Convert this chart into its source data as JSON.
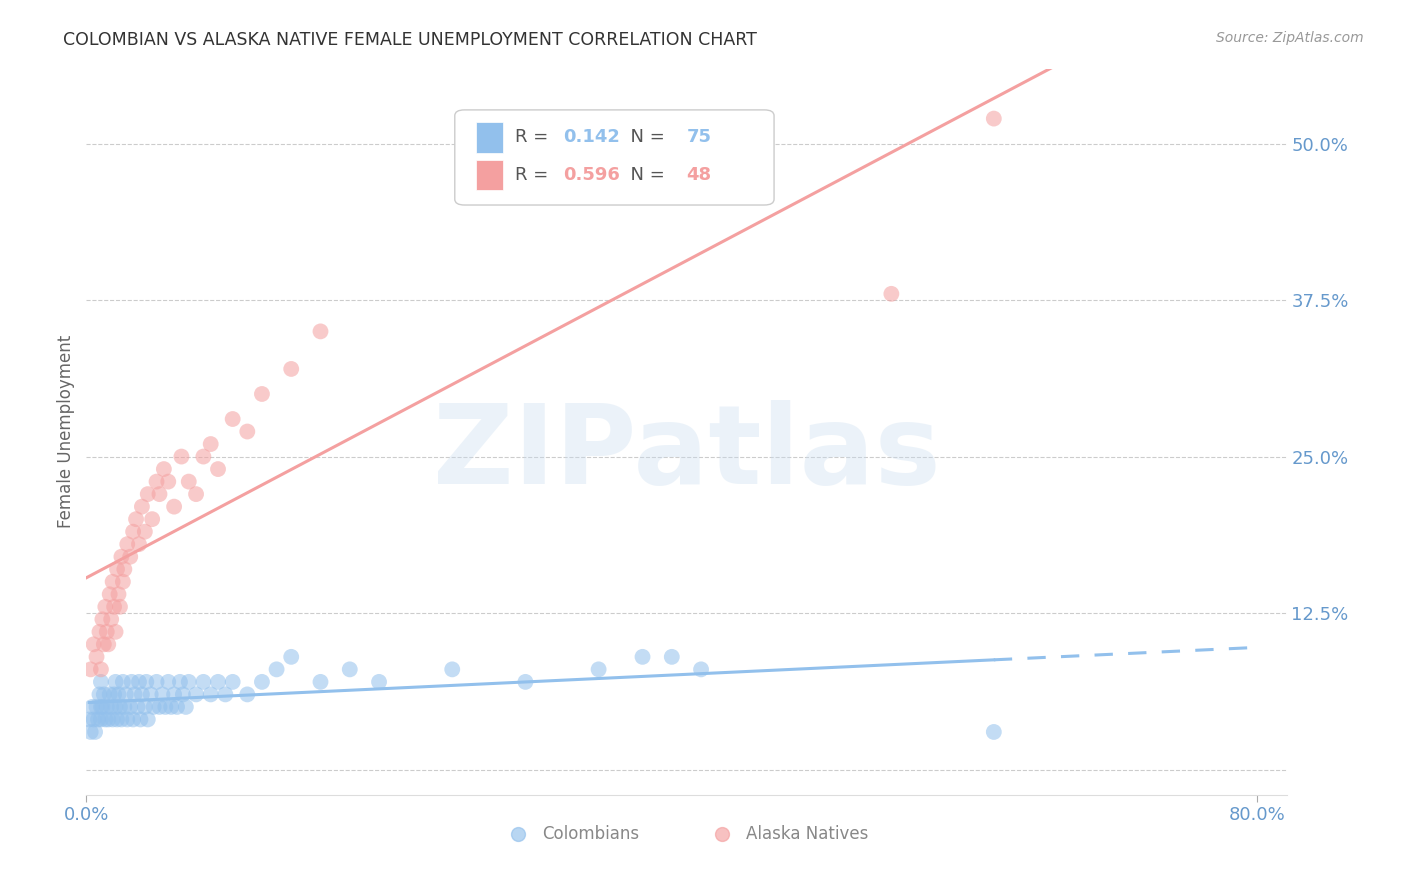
{
  "title": "COLOMBIAN VS ALASKA NATIVE FEMALE UNEMPLOYMENT CORRELATION CHART",
  "source": "Source: ZipAtlas.com",
  "ylabel": "Female Unemployment",
  "watermark": "ZIPatlas",
  "xlim": [
    0.0,
    0.82
  ],
  "ylim": [
    -0.02,
    0.56
  ],
  "yticks": [
    0.0,
    0.125,
    0.25,
    0.375,
    0.5
  ],
  "ytick_labels": [
    "",
    "12.5%",
    "25.0%",
    "37.5%",
    "50.0%"
  ],
  "blue_color": "#92C0EC",
  "pink_color": "#F4A0A0",
  "title_color": "#333333",
  "axis_label_color": "#666666",
  "tick_color": "#6699CC",
  "grid_color": "#CCCCCC",
  "background_color": "#FFFFFF",
  "colombians_R": "0.142",
  "colombians_N": "75",
  "alaska_R": "0.596",
  "alaska_N": "48",
  "colombians_x": [
    0.002,
    0.003,
    0.004,
    0.005,
    0.006,
    0.007,
    0.008,
    0.009,
    0.01,
    0.01,
    0.01,
    0.011,
    0.012,
    0.013,
    0.014,
    0.015,
    0.016,
    0.017,
    0.018,
    0.019,
    0.02,
    0.02,
    0.021,
    0.022,
    0.023,
    0.024,
    0.025,
    0.026,
    0.027,
    0.028,
    0.03,
    0.031,
    0.032,
    0.033,
    0.035,
    0.036,
    0.037,
    0.038,
    0.04,
    0.041,
    0.042,
    0.044,
    0.046,
    0.048,
    0.05,
    0.052,
    0.054,
    0.056,
    0.058,
    0.06,
    0.062,
    0.064,
    0.066,
    0.068,
    0.07,
    0.075,
    0.08,
    0.085,
    0.09,
    0.095,
    0.1,
    0.11,
    0.12,
    0.13,
    0.14,
    0.16,
    0.18,
    0.2,
    0.25,
    0.3,
    0.35,
    0.38,
    0.4,
    0.42,
    0.62
  ],
  "colombians_y": [
    0.04,
    0.03,
    0.05,
    0.04,
    0.03,
    0.05,
    0.04,
    0.06,
    0.05,
    0.07,
    0.04,
    0.05,
    0.06,
    0.04,
    0.05,
    0.04,
    0.06,
    0.05,
    0.04,
    0.06,
    0.05,
    0.07,
    0.04,
    0.06,
    0.05,
    0.04,
    0.07,
    0.05,
    0.06,
    0.04,
    0.05,
    0.07,
    0.04,
    0.06,
    0.05,
    0.07,
    0.04,
    0.06,
    0.05,
    0.07,
    0.04,
    0.06,
    0.05,
    0.07,
    0.05,
    0.06,
    0.05,
    0.07,
    0.05,
    0.06,
    0.05,
    0.07,
    0.06,
    0.05,
    0.07,
    0.06,
    0.07,
    0.06,
    0.07,
    0.06,
    0.07,
    0.06,
    0.07,
    0.08,
    0.09,
    0.07,
    0.08,
    0.07,
    0.08,
    0.07,
    0.08,
    0.09,
    0.09,
    0.08,
    0.03
  ],
  "alaska_x": [
    0.003,
    0.005,
    0.007,
    0.009,
    0.01,
    0.011,
    0.012,
    0.013,
    0.014,
    0.015,
    0.016,
    0.017,
    0.018,
    0.019,
    0.02,
    0.021,
    0.022,
    0.023,
    0.024,
    0.025,
    0.026,
    0.028,
    0.03,
    0.032,
    0.034,
    0.036,
    0.038,
    0.04,
    0.042,
    0.045,
    0.048,
    0.05,
    0.053,
    0.056,
    0.06,
    0.065,
    0.07,
    0.075,
    0.08,
    0.085,
    0.09,
    0.1,
    0.11,
    0.12,
    0.14,
    0.16,
    0.55,
    0.62
  ],
  "alaska_y": [
    0.08,
    0.1,
    0.09,
    0.11,
    0.08,
    0.12,
    0.1,
    0.13,
    0.11,
    0.1,
    0.14,
    0.12,
    0.15,
    0.13,
    0.11,
    0.16,
    0.14,
    0.13,
    0.17,
    0.15,
    0.16,
    0.18,
    0.17,
    0.19,
    0.2,
    0.18,
    0.21,
    0.19,
    0.22,
    0.2,
    0.23,
    0.22,
    0.24,
    0.23,
    0.21,
    0.25,
    0.23,
    0.22,
    0.25,
    0.26,
    0.24,
    0.28,
    0.27,
    0.3,
    0.32,
    0.35,
    0.38,
    0.52
  ]
}
